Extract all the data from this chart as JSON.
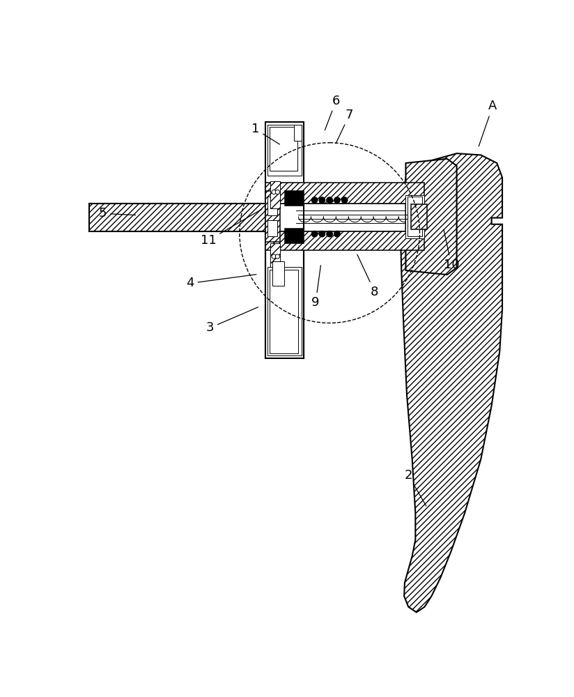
{
  "background_color": "#ffffff",
  "line_color": "#000000",
  "label_fontsize": 13,
  "figsize": [
    8.24,
    10.0
  ],
  "dpi": 100,
  "labels": [
    [
      "1",
      340,
      85,
      388,
      115
    ],
    [
      "2",
      625,
      730,
      660,
      790
    ],
    [
      "3",
      255,
      455,
      348,
      415
    ],
    [
      "4",
      218,
      372,
      345,
      355
    ],
    [
      "5",
      55,
      242,
      120,
      245
    ],
    [
      "6",
      490,
      32,
      468,
      90
    ],
    [
      "7",
      515,
      58,
      488,
      115
    ],
    [
      "8",
      562,
      388,
      528,
      315
    ],
    [
      "9",
      452,
      408,
      462,
      335
    ],
    [
      "10",
      705,
      338,
      690,
      268
    ],
    [
      "11",
      252,
      292,
      355,
      232
    ],
    [
      "A",
      782,
      42,
      755,
      120
    ]
  ]
}
